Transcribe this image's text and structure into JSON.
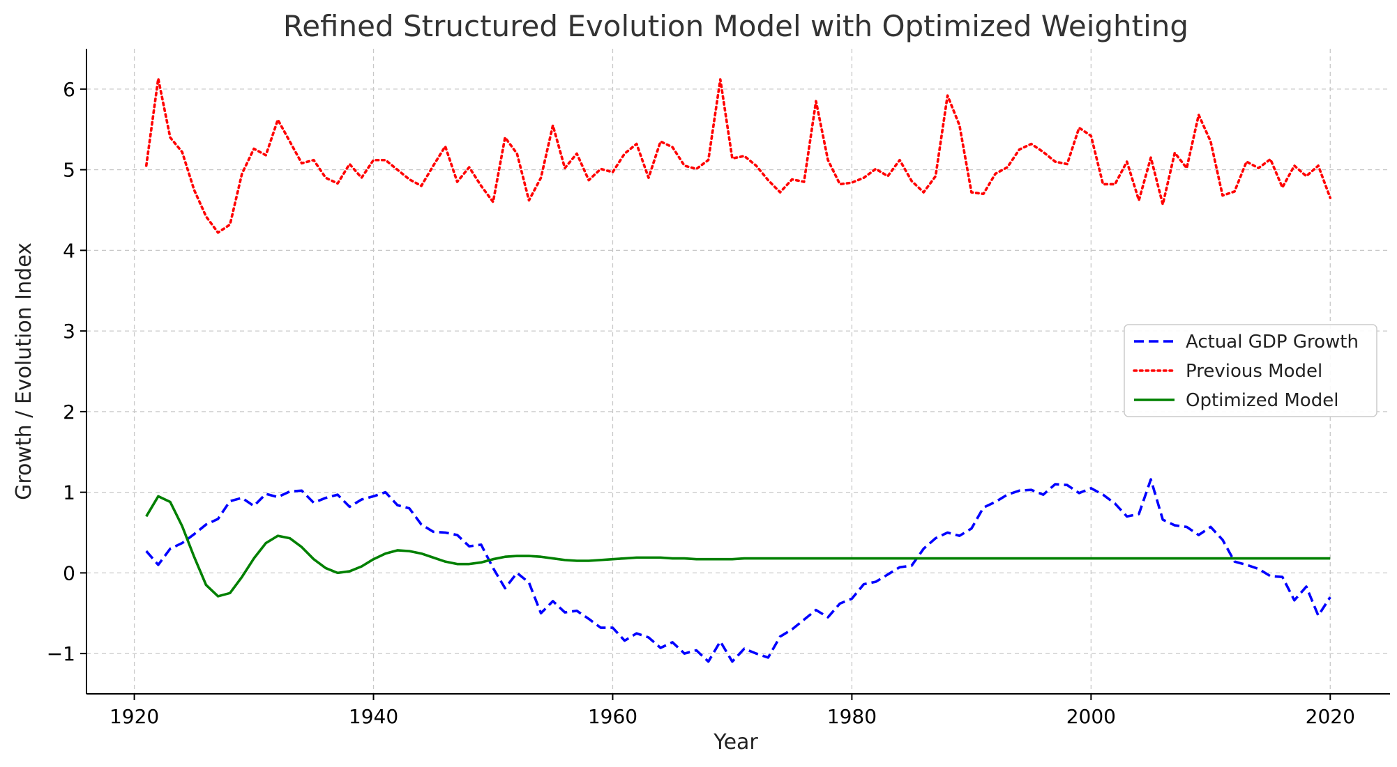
{
  "chart_data": {
    "type": "line",
    "title": "Refined Structured Evolution Model with Optimized Weighting",
    "xlabel": "Year",
    "ylabel": "Growth / Evolution Index",
    "xlim": [
      1916,
      2025
    ],
    "ylim": [
      -1.5,
      6.5
    ],
    "xticks": [
      1920,
      1940,
      1960,
      1980,
      2000,
      2020
    ],
    "yticks": [
      -1,
      0,
      1,
      2,
      3,
      4,
      5,
      6
    ],
    "ytick_labels": [
      "−1",
      "0",
      "1",
      "2",
      "3",
      "4",
      "5",
      "6"
    ],
    "grid": true,
    "legend_position": "center-right",
    "x": [
      1921,
      1922,
      1923,
      1924,
      1925,
      1926,
      1927,
      1928,
      1929,
      1930,
      1931,
      1932,
      1933,
      1934,
      1935,
      1936,
      1937,
      1938,
      1939,
      1940,
      1941,
      1942,
      1943,
      1944,
      1945,
      1946,
      1947,
      1948,
      1949,
      1950,
      1951,
      1952,
      1953,
      1954,
      1955,
      1956,
      1957,
      1958,
      1959,
      1960,
      1961,
      1962,
      1963,
      1964,
      1965,
      1966,
      1967,
      1968,
      1969,
      1970,
      1971,
      1972,
      1973,
      1974,
      1975,
      1976,
      1977,
      1978,
      1979,
      1980,
      1981,
      1982,
      1983,
      1984,
      1985,
      1986,
      1987,
      1988,
      1989,
      1990,
      1991,
      1992,
      1993,
      1994,
      1995,
      1996,
      1997,
      1998,
      1999,
      2000,
      2001,
      2002,
      2003,
      2004,
      2005,
      2006,
      2007,
      2008,
      2009,
      2010,
      2011,
      2012,
      2013,
      2014,
      2015,
      2016,
      2017,
      2018,
      2019,
      2020
    ],
    "series": [
      {
        "name": "Actual GDP Growth",
        "color": "#0000ff",
        "dash": "dashed",
        "values": [
          0.27,
          0.1,
          0.3,
          0.37,
          0.48,
          0.6,
          0.67,
          0.89,
          0.93,
          0.83,
          0.98,
          0.94,
          1.01,
          1.02,
          0.87,
          0.93,
          0.97,
          0.82,
          0.91,
          0.95,
          1.0,
          0.84,
          0.8,
          0.6,
          0.51,
          0.5,
          0.47,
          0.33,
          0.35,
          0.06,
          -0.19,
          0.0,
          -0.12,
          -0.5,
          -0.35,
          -0.49,
          -0.47,
          -0.57,
          -0.68,
          -0.68,
          -0.84,
          -0.75,
          -0.8,
          -0.93,
          -0.86,
          -1.0,
          -0.96,
          -1.1,
          -0.85,
          -1.1,
          -0.94,
          -1.0,
          -1.05,
          -0.79,
          -0.7,
          -0.58,
          -0.46,
          -0.55,
          -0.38,
          -0.32,
          -0.14,
          -0.11,
          -0.02,
          0.07,
          0.09,
          0.3,
          0.43,
          0.5,
          0.46,
          0.55,
          0.81,
          0.88,
          0.97,
          1.02,
          1.03,
          0.97,
          1.1,
          1.09,
          0.99,
          1.05,
          0.97,
          0.86,
          0.7,
          0.73,
          1.16,
          0.66,
          0.59,
          0.57,
          0.47,
          0.57,
          0.41,
          0.14,
          0.1,
          0.05,
          -0.04,
          -0.05,
          -0.34,
          -0.17,
          -0.53,
          -0.3
        ]
      },
      {
        "name": "Previous Model",
        "color": "#ff0000",
        "dash": "dotted",
        "values": [
          5.05,
          6.13,
          5.4,
          5.22,
          4.75,
          4.42,
          4.22,
          4.32,
          4.95,
          5.26,
          5.18,
          5.62,
          5.35,
          5.08,
          5.12,
          4.9,
          4.83,
          5.07,
          4.9,
          5.12,
          5.12,
          5.0,
          4.88,
          4.8,
          5.05,
          5.29,
          4.85,
          5.03,
          4.8,
          4.6,
          5.4,
          5.2,
          4.62,
          4.9,
          5.55,
          5.02,
          5.2,
          4.87,
          5.01,
          4.97,
          5.2,
          5.32,
          4.9,
          5.35,
          5.28,
          5.05,
          5.01,
          5.12,
          6.12,
          5.14,
          5.17,
          5.05,
          4.87,
          4.72,
          4.88,
          4.85,
          5.85,
          5.12,
          4.82,
          4.84,
          4.9,
          5.01,
          4.92,
          5.12,
          4.86,
          4.72,
          4.92,
          5.92,
          5.55,
          4.72,
          4.7,
          4.95,
          5.03,
          5.25,
          5.32,
          5.22,
          5.1,
          5.07,
          5.52,
          5.42,
          4.82,
          4.82,
          5.1,
          4.62,
          5.15,
          4.57,
          5.21,
          5.02,
          5.68,
          5.35,
          4.68,
          4.73,
          5.1,
          5.02,
          5.13,
          4.78,
          5.05,
          4.92,
          5.05,
          4.65
        ]
      },
      {
        "name": "Optimized Model",
        "color": "#008000",
        "dash": "solid",
        "values": [
          0.7,
          0.95,
          0.88,
          0.58,
          0.2,
          -0.15,
          -0.29,
          -0.25,
          -0.05,
          0.18,
          0.37,
          0.46,
          0.43,
          0.32,
          0.17,
          0.06,
          0.0,
          0.02,
          0.08,
          0.17,
          0.24,
          0.28,
          0.27,
          0.24,
          0.19,
          0.14,
          0.11,
          0.11,
          0.13,
          0.17,
          0.2,
          0.21,
          0.21,
          0.2,
          0.18,
          0.16,
          0.15,
          0.15,
          0.16,
          0.17,
          0.18,
          0.19,
          0.19,
          0.19,
          0.18,
          0.18,
          0.17,
          0.17,
          0.17,
          0.17,
          0.18,
          0.18,
          0.18,
          0.18,
          0.18,
          0.18,
          0.18,
          0.18,
          0.18,
          0.18,
          0.18,
          0.18,
          0.18,
          0.18,
          0.18,
          0.18,
          0.18,
          0.18,
          0.18,
          0.18,
          0.18,
          0.18,
          0.18,
          0.18,
          0.18,
          0.18,
          0.18,
          0.18,
          0.18,
          0.18,
          0.18,
          0.18,
          0.18,
          0.18,
          0.18,
          0.18,
          0.18,
          0.18,
          0.18,
          0.18,
          0.18,
          0.18,
          0.18,
          0.18,
          0.18,
          0.18,
          0.18,
          0.18,
          0.18,
          0.18
        ]
      }
    ]
  }
}
